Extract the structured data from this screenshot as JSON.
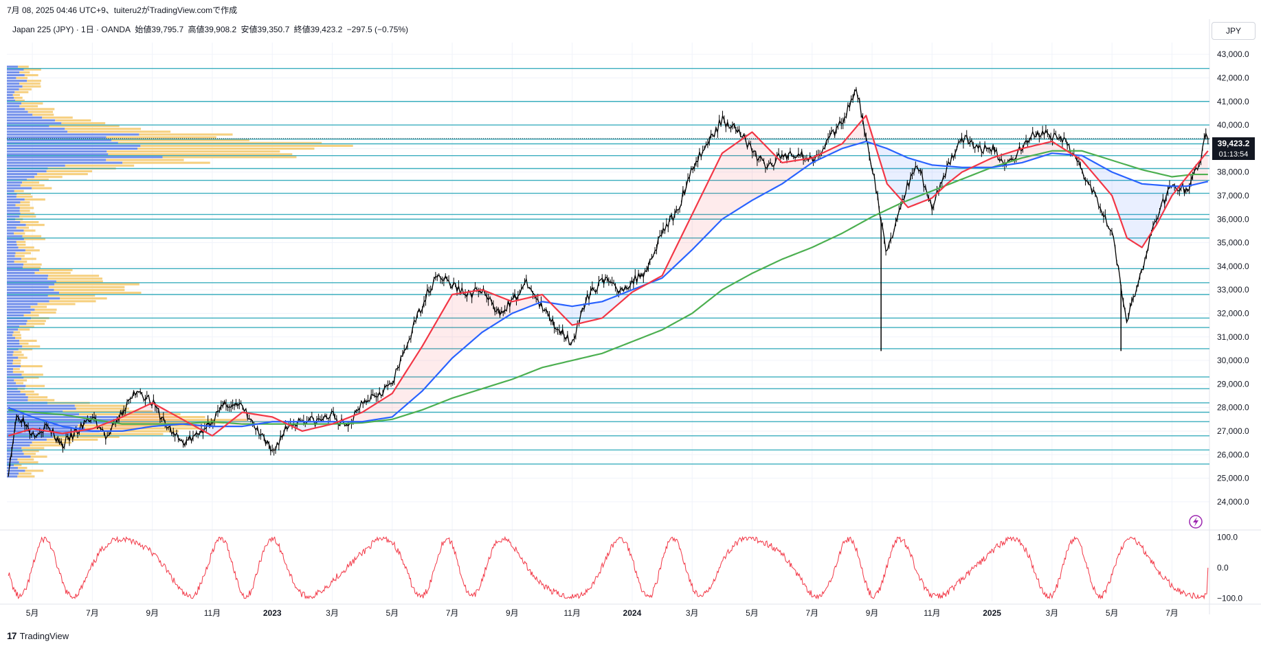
{
  "header": {
    "caption": "7月 08, 2025 04:46 UTC+9、tuiteru2がTradingView.comで作成"
  },
  "legend": {
    "symbol": "Japan 225 (JPY) · 1日 · OANDA",
    "open": "始値39,795.7",
    "high": "高値39,908.2",
    "low": "安値39,350.7",
    "close": "終値39,423.2",
    "change": "−297.5 (−0.75%)"
  },
  "currency_label": "JPY",
  "price_badge": {
    "price": "39,423.2",
    "countdown": "01:13:54"
  },
  "footer": {
    "brand": "TradingView",
    "logo_glyph": "17"
  },
  "colors": {
    "price": "#000000",
    "ma_short": "#f23645",
    "ma_mid": "#2962ff",
    "ma_long": "#4caf50",
    "levels": "#26a6b8",
    "oscillator": "#f23645",
    "vp_up": "#5b7ce6",
    "vp_down": "#f5c86a"
  },
  "chart_data": {
    "type": "line",
    "title": "Japan 225 (JPY)",
    "y_axis": {
      "range": [
        23500,
        43500
      ],
      "ticks": [
        24000,
        25000,
        26000,
        27000,
        28000,
        29000,
        30000,
        31000,
        32000,
        33000,
        34000,
        35000,
        36000,
        37000,
        38000,
        39000,
        40000,
        41000,
        42000,
        43000
      ],
      "tick_labels": [
        "24,000.0",
        "25,000.0",
        "26,000.0",
        "27,000.0",
        "28,000.0",
        "29,000.0",
        "30,000.0",
        "31,000.0",
        "32,000.0",
        "33,000.0",
        "34,000.0",
        "35,000.0",
        "36,000.0",
        "37,000.0",
        "38,000.0",
        "39,000.0",
        "40,000.0",
        "41,000.0",
        "42,000.0",
        "43,000.0"
      ]
    },
    "x_axis": {
      "range": [
        -0.85,
        39.25
      ],
      "ticks": [
        0,
        2,
        4,
        6,
        8,
        10,
        12,
        14,
        16,
        18,
        20,
        22,
        24,
        26,
        28,
        30,
        32,
        34,
        36,
        38
      ],
      "tick_labels": [
        "5月",
        "7月",
        "9月",
        "11月",
        "2023",
        "3月",
        "5月",
        "7月",
        "9月",
        "11月",
        "2024",
        "3月",
        "5月",
        "7月",
        "9月",
        "11月",
        "2025",
        "3月",
        "5月",
        "7月"
      ]
    },
    "price_series": {
      "name": "Japan 225",
      "points": [
        [
          -0.8,
          25300
        ],
        [
          -0.5,
          27800
        ],
        [
          0,
          26900
        ],
        [
          0.5,
          27200
        ],
        [
          1,
          26400
        ],
        [
          1.5,
          27000
        ],
        [
          2,
          27600
        ],
        [
          2.5,
          26700
        ],
        [
          3,
          27800
        ],
        [
          3.5,
          28800
        ],
        [
          4,
          28200
        ],
        [
          4.5,
          27200
        ],
        [
          5,
          26500
        ],
        [
          5.5,
          26800
        ],
        [
          6,
          27500
        ],
        [
          6.5,
          28200
        ],
        [
          7,
          28000
        ],
        [
          7.5,
          27000
        ],
        [
          8,
          26100
        ],
        [
          8.5,
          27200
        ],
        [
          9,
          27500
        ],
        [
          9.5,
          27400
        ],
        [
          10,
          27700
        ],
        [
          10.5,
          27100
        ],
        [
          11,
          28300
        ],
        [
          11.5,
          28600
        ],
        [
          12,
          29000
        ],
        [
          12.5,
          30700
        ],
        [
          13,
          32400
        ],
        [
          13.5,
          33700
        ],
        [
          14,
          33200
        ],
        [
          14.5,
          32800
        ],
        [
          15,
          33000
        ],
        [
          15.5,
          32000
        ],
        [
          16,
          32500
        ],
        [
          16.5,
          33300
        ],
        [
          17,
          32200
        ],
        [
          17.5,
          31400
        ],
        [
          18,
          30800
        ],
        [
          18.5,
          32600
        ],
        [
          19,
          33500
        ],
        [
          19.5,
          33000
        ],
        [
          20,
          33300
        ],
        [
          20.5,
          33900
        ],
        [
          21,
          35500
        ],
        [
          21.5,
          36300
        ],
        [
          22,
          38200
        ],
        [
          22.5,
          39200
        ],
        [
          23,
          40200
        ],
        [
          23.5,
          39900
        ],
        [
          24,
          38900
        ],
        [
          24.5,
          38200
        ],
        [
          25,
          38700
        ],
        [
          25.5,
          38800
        ],
        [
          26,
          38500
        ],
        [
          26.5,
          39300
        ],
        [
          27,
          40100
        ],
        [
          27.5,
          41500
        ],
        [
          28,
          38200
        ],
        [
          28.5,
          34500
        ],
        [
          29,
          36800
        ],
        [
          29.5,
          38400
        ],
        [
          30,
          36500
        ],
        [
          30.5,
          38200
        ],
        [
          31,
          39500
        ],
        [
          31.5,
          39000
        ],
        [
          32,
          39000
        ],
        [
          32.5,
          38300
        ],
        [
          33,
          39100
        ],
        [
          33.5,
          39700
        ],
        [
          34,
          39500
        ],
        [
          34.5,
          39200
        ],
        [
          35,
          38100
        ],
        [
          35.5,
          36900
        ],
        [
          36,
          35500
        ],
        [
          36.5,
          31700
        ],
        [
          37,
          33800
        ],
        [
          37.5,
          36200
        ],
        [
          38,
          37500
        ],
        [
          38.5,
          37200
        ],
        [
          39,
          38600
        ],
        [
          39.1,
          39900
        ],
        [
          39.2,
          39423.2
        ]
      ]
    },
    "ma_short": {
      "name": "MA (short)",
      "points": [
        [
          -0.8,
          26800
        ],
        [
          0,
          27100
        ],
        [
          1,
          26900
        ],
        [
          2,
          27100
        ],
        [
          3,
          27600
        ],
        [
          4,
          28200
        ],
        [
          5,
          27500
        ],
        [
          6,
          26800
        ],
        [
          7,
          27800
        ],
        [
          8,
          27600
        ],
        [
          9,
          27000
        ],
        [
          10,
          27300
        ],
        [
          11,
          27800
        ],
        [
          12,
          28600
        ],
        [
          13,
          30600
        ],
        [
          14,
          32800
        ],
        [
          15,
          33000
        ],
        [
          16,
          32500
        ],
        [
          17,
          32800
        ],
        [
          18,
          31500
        ],
        [
          19,
          31800
        ],
        [
          20,
          32900
        ],
        [
          21,
          33600
        ],
        [
          22,
          36200
        ],
        [
          23,
          38800
        ],
        [
          24,
          39700
        ],
        [
          25,
          38400
        ],
        [
          26,
          38600
        ],
        [
          27,
          39200
        ],
        [
          27.8,
          40400
        ],
        [
          28.5,
          37500
        ],
        [
          29.2,
          36500
        ],
        [
          30,
          36900
        ],
        [
          30.5,
          37500
        ],
        [
          31,
          38000
        ],
        [
          32,
          38600
        ],
        [
          33,
          39000
        ],
        [
          34,
          39300
        ],
        [
          35,
          38500
        ],
        [
          36,
          37000
        ],
        [
          36.5,
          35200
        ],
        [
          37,
          34800
        ],
        [
          37.5,
          35800
        ],
        [
          38,
          37000
        ],
        [
          38.5,
          37800
        ],
        [
          39.2,
          38900
        ]
      ]
    },
    "ma_mid": {
      "name": "MA (mid)",
      "points": [
        [
          -0.8,
          28000
        ],
        [
          0,
          27600
        ],
        [
          1,
          27200
        ],
        [
          2,
          27000
        ],
        [
          3,
          27000
        ],
        [
          4,
          27200
        ],
        [
          5,
          27300
        ],
        [
          6,
          27200
        ],
        [
          7,
          27200
        ],
        [
          8,
          27400
        ],
        [
          9,
          27400
        ],
        [
          10,
          27400
        ],
        [
          11,
          27400
        ],
        [
          12,
          27600
        ],
        [
          13,
          28700
        ],
        [
          14,
          30100
        ],
        [
          15,
          31200
        ],
        [
          16,
          32000
        ],
        [
          17,
          32500
        ],
        [
          18,
          32300
        ],
        [
          19,
          32500
        ],
        [
          20,
          33000
        ],
        [
          21,
          33500
        ],
        [
          22,
          34700
        ],
        [
          23,
          36000
        ],
        [
          24,
          36800
        ],
        [
          25,
          37500
        ],
        [
          26,
          38400
        ],
        [
          27,
          39000
        ],
        [
          27.8,
          39300
        ],
        [
          28.5,
          39000
        ],
        [
          29.2,
          38600
        ],
        [
          30,
          38300
        ],
        [
          31,
          38200
        ],
        [
          32,
          38200
        ],
        [
          33,
          38400
        ],
        [
          34,
          38800
        ],
        [
          35,
          38700
        ],
        [
          36,
          38000
        ],
        [
          37,
          37500
        ],
        [
          38,
          37400
        ],
        [
          38.5,
          37400
        ],
        [
          39.2,
          37600
        ]
      ]
    },
    "ma_long": {
      "name": "MA (long)",
      "points": [
        [
          -0.8,
          27900
        ],
        [
          0,
          27800
        ],
        [
          1,
          27700
        ],
        [
          2,
          27500
        ],
        [
          3,
          27300
        ],
        [
          4,
          27300
        ],
        [
          5,
          27300
        ],
        [
          6,
          27400
        ],
        [
          7,
          27300
        ],
        [
          8,
          27300
        ],
        [
          9,
          27300
        ],
        [
          10,
          27300
        ],
        [
          11,
          27350
        ],
        [
          12,
          27500
        ],
        [
          13,
          27900
        ],
        [
          14,
          28400
        ],
        [
          15,
          28800
        ],
        [
          16,
          29200
        ],
        [
          17,
          29700
        ],
        [
          18,
          30000
        ],
        [
          19,
          30300
        ],
        [
          20,
          30800
        ],
        [
          21,
          31300
        ],
        [
          22,
          32000
        ],
        [
          23,
          33000
        ],
        [
          24,
          33700
        ],
        [
          25,
          34300
        ],
        [
          26,
          34800
        ],
        [
          27,
          35400
        ],
        [
          28,
          36100
        ],
        [
          29,
          36700
        ],
        [
          30,
          37200
        ],
        [
          31,
          37700
        ],
        [
          32,
          38200
        ],
        [
          33,
          38600
        ],
        [
          34,
          38900
        ],
        [
          35,
          38900
        ],
        [
          36,
          38500
        ],
        [
          37,
          38100
        ],
        [
          38,
          37800
        ],
        [
          38.7,
          37900
        ],
        [
          39.2,
          37900
        ]
      ]
    },
    "horizontal_levels": [
      42400,
      41000,
      40000,
      39400,
      39200,
      38700,
      38150,
      37650,
      37100,
      36200,
      36000,
      35200,
      33900,
      33300,
      32800,
      31800,
      31400,
      30500,
      29300,
      28800,
      28200,
      27800,
      27400,
      26800,
      26200,
      25600
    ],
    "oscillator": {
      "name": "Oscillator",
      "range": [
        -110,
        110
      ],
      "ticks": [
        100,
        0,
        -100
      ],
      "tick_labels": [
        "100.0",
        "0.0",
        "−100.0"
      ]
    }
  }
}
